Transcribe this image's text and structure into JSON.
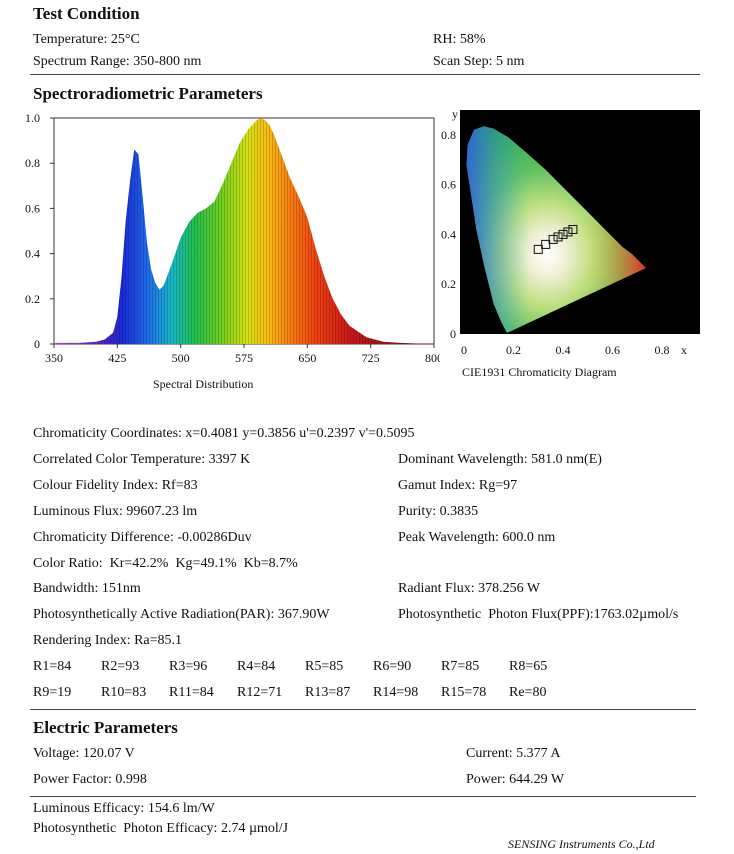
{
  "test_condition": {
    "title": "Test Condition",
    "temperature": "Temperature: 25°C",
    "rh": "RH: 58%",
    "spectrum_range": "Spectrum Range: 350-800 nm",
    "scan_step": "Scan Step: 5 nm"
  },
  "spectro": {
    "title": "Spectroradiometric Parameters"
  },
  "chart_data": [
    {
      "type": "area",
      "title": "",
      "xlabel": "Spectral Distribution",
      "ylabel": "",
      "xlim": [
        350,
        800
      ],
      "ylim": [
        0,
        1.0
      ],
      "x_ticks": [
        "350",
        "425",
        "500",
        "575",
        "650",
        "725",
        "800"
      ],
      "y_ticks": [
        "0",
        "0.2",
        "0.4",
        "0.6",
        "0.8",
        "1.0"
      ],
      "x": [
        350,
        380,
        400,
        410,
        420,
        425,
        430,
        435,
        440,
        445,
        450,
        455,
        460,
        465,
        470,
        475,
        480,
        490,
        500,
        510,
        520,
        530,
        540,
        550,
        560,
        570,
        580,
        590,
        595,
        600,
        605,
        610,
        620,
        630,
        640,
        650,
        660,
        670,
        680,
        690,
        700,
        720,
        740,
        760,
        780,
        800
      ],
      "values": [
        0.005,
        0.005,
        0.01,
        0.02,
        0.05,
        0.12,
        0.3,
        0.55,
        0.72,
        0.86,
        0.84,
        0.65,
        0.45,
        0.33,
        0.27,
        0.24,
        0.26,
        0.36,
        0.47,
        0.54,
        0.58,
        0.6,
        0.63,
        0.71,
        0.8,
        0.89,
        0.95,
        0.99,
        1.0,
        0.99,
        0.97,
        0.93,
        0.83,
        0.73,
        0.65,
        0.56,
        0.42,
        0.3,
        0.2,
        0.13,
        0.08,
        0.03,
        0.01,
        0.005,
        0.002,
        0.001
      ]
    },
    {
      "type": "scatter",
      "title": "",
      "xlabel": "CIE1931 Chromaticity Diagram",
      "ylabel": "y",
      "x_axis_symbol": "x",
      "xlim": [
        0,
        0.8
      ],
      "ylim": [
        0,
        0.9
      ],
      "x_ticks": [
        "0",
        "0.2",
        "0.4",
        "0.6",
        "0.8"
      ],
      "y_ticks": [
        "0",
        "0.2",
        "0.4",
        "0.6",
        "0.8"
      ],
      "points": [
        {
          "x": 0.3,
          "y": 0.34
        },
        {
          "x": 0.33,
          "y": 0.36
        },
        {
          "x": 0.36,
          "y": 0.38
        },
        {
          "x": 0.38,
          "y": 0.39
        },
        {
          "x": 0.4,
          "y": 0.4
        },
        {
          "x": 0.42,
          "y": 0.41
        },
        {
          "x": 0.44,
          "y": 0.42
        }
      ]
    }
  ],
  "params": {
    "chromaticity": "Chromaticity Coordinates: x=0.4081 y=0.3856 u'=0.2397 v'=0.5095",
    "cct": "Correlated Color Temperature: 3397 K",
    "dominant": "Dominant Wavelength: 581.0 nm(E)",
    "fidelity": "Colour Fidelity Index: Rf=83",
    "gamut": "Gamut Index: Rg=97",
    "flux": "Luminous Flux: 99607.23 lm",
    "purity": "Purity: 0.3835",
    "duv": "Chromaticity Difference: -0.00286Duv",
    "peak": "Peak Wavelength: 600.0 nm",
    "ratio": "Color Ratio:  Kr=42.2%  Kg=49.1%  Kb=8.7%",
    "bandwidth": "Bandwidth: 151nm",
    "radiant": "Radiant Flux: 378.256 W",
    "par": "Photosynthetically Active Radiation(PAR): 367.90W",
    "ppf": "Photosynthetic  Photon Flux(PPF):1763.02µmol/s",
    "rendering": "Rendering Index: Ra=85.1",
    "r_row1": [
      "R1=84",
      "R2=93",
      "R3=96",
      "R4=84",
      "R5=85",
      "R6=90",
      "R7=85",
      "R8=65"
    ],
    "r_row2": [
      "R9=19",
      "R10=83",
      "R11=84",
      "R12=71",
      "R13=87",
      "R14=98",
      "R15=78",
      "Re=80"
    ]
  },
  "electric": {
    "title": "Electric Parameters",
    "voltage": "Voltage: 120.07 V",
    "current": "Current: 5.377 A",
    "pf": "Power Factor: 0.998",
    "power": "Power: 644.29 W"
  },
  "efficacy": {
    "luminous": "Luminous Efficacy: 154.6 lm/W",
    "photon": "Photosynthetic  Photon Efficacy: 2.74 µmol/J"
  },
  "footer": "SENSING Instruments Co.,Ltd"
}
